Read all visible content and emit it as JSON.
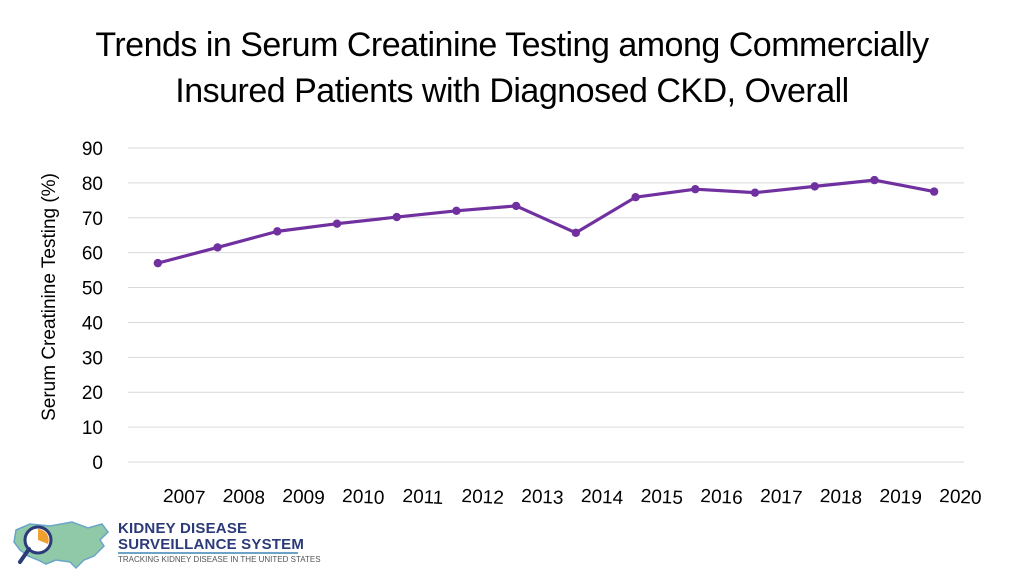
{
  "title_lines": [
    "Trends in Serum Creatinine Testing among Commercially",
    "Insured Patients with Diagnosed CKD, Overall"
  ],
  "colors": {
    "series": "#7030a0",
    "grid": "#d9d9d9"
  },
  "chart_data": {
    "type": "line",
    "title": "Trends in Serum Creatinine Testing among Commercially Insured Patients with Diagnosed CKD, Overall",
    "xlabel": "",
    "ylabel": "Serum Creatinine Testing (%)",
    "ylim": [
      0,
      90
    ],
    "yticks": [
      0,
      10,
      20,
      30,
      40,
      50,
      60,
      70,
      80,
      90
    ],
    "grid": true,
    "categories": [
      "2007",
      "2008",
      "2009",
      "2010",
      "2011",
      "2012",
      "2013",
      "2014",
      "2015",
      "2016",
      "2017",
      "2018",
      "2019",
      "2020"
    ],
    "series": [
      {
        "name": "Overall",
        "values": [
          57.0,
          61.5,
          66.1,
          68.3,
          70.2,
          72.0,
          73.4,
          65.7,
          75.9,
          78.2,
          77.2,
          79.0,
          80.8,
          77.5
        ]
      }
    ]
  },
  "logo": {
    "line1": "KIDNEY DISEASE",
    "line2": "SURVEILLANCE SYSTEM",
    "line3": "TRACKING KIDNEY DISEASE IN THE UNITED STATES"
  }
}
